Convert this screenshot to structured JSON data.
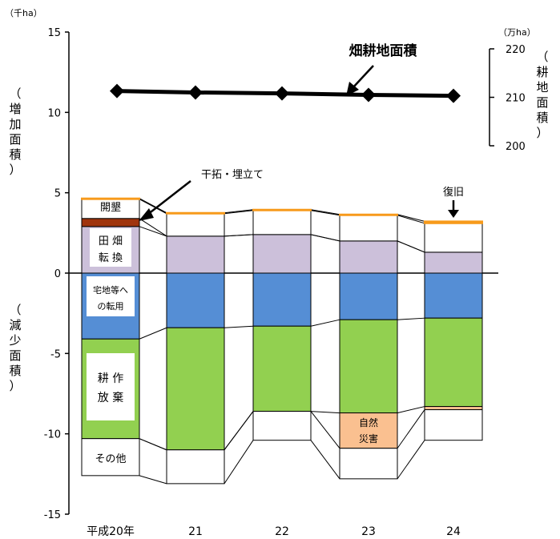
{
  "chart_data": {
    "type": "bar",
    "stacked": true,
    "categories": [
      "平成20年",
      "21",
      "22",
      "23",
      "24"
    ],
    "y_left": {
      "unit": "（千ha）",
      "ylim": [
        -15,
        15
      ],
      "ticks": [
        15,
        10,
        5,
        0,
        -5,
        -10,
        -15
      ],
      "tick_labels": [
        "15",
        "10",
        "5",
        "0",
        "-5",
        "-10",
        "-15"
      ],
      "label_increase": "（増加面積）",
      "label_decrease": "（減少面積）"
    },
    "y_right": {
      "unit": "（万ha）",
      "ylim": [
        200,
        220
      ],
      "ticks": [
        220,
        210,
        200
      ],
      "tick_labels": [
        "220",
        "210",
        "200"
      ],
      "label": "（耕地面積）"
    },
    "increase_series": [
      {
        "name": "田畑転換",
        "color": "#ccc0da",
        "values": [
          2.9,
          2.3,
          2.4,
          2.0,
          1.3
        ]
      },
      {
        "name": "干拓・埋立て",
        "color": "#a0340e",
        "values": [
          0.5,
          0.0,
          0.0,
          0.0,
          0.0
        ]
      },
      {
        "name": "開墾",
        "color": "#ffffff",
        "values": [
          1.2,
          1.4,
          1.5,
          1.6,
          1.8
        ]
      },
      {
        "name": "復旧",
        "color": "#f79a1b",
        "values": [
          0.05,
          0.05,
          0.05,
          0.05,
          0.12
        ]
      }
    ],
    "decrease_series": [
      {
        "name": "宅地等への転用",
        "color": "#558ed5",
        "values": [
          4.1,
          3.4,
          3.3,
          2.9,
          2.8
        ]
      },
      {
        "name": "耕作放棄",
        "color": "#92d050",
        "values": [
          6.2,
          7.6,
          5.3,
          5.8,
          5.5
        ]
      },
      {
        "name": "自然災害",
        "color": "#fac090",
        "values": [
          0.0,
          0.0,
          0.0,
          2.2,
          0.2
        ]
      },
      {
        "name": "その他",
        "color": "#ffffff",
        "values": [
          2.3,
          2.1,
          1.8,
          1.9,
          1.9
        ]
      }
    ],
    "line_series": {
      "name": "畑耕地面積",
      "values": [
        211.3,
        211.0,
        210.8,
        210.5,
        210.3
      ]
    },
    "annotations": {
      "kaikon": "開墾",
      "kantaku": "干拓・埋立て",
      "denpata": [
        "田 畑",
        "転 換"
      ],
      "takuchi": [
        "宅地等へ",
        "の転用"
      ],
      "housou": [
        "耕 作",
        "放 棄"
      ],
      "sonota": "その他",
      "saigai": [
        "自然",
        "災害"
      ],
      "fukkyu": "復旧",
      "line": "畑耕地面積"
    }
  }
}
